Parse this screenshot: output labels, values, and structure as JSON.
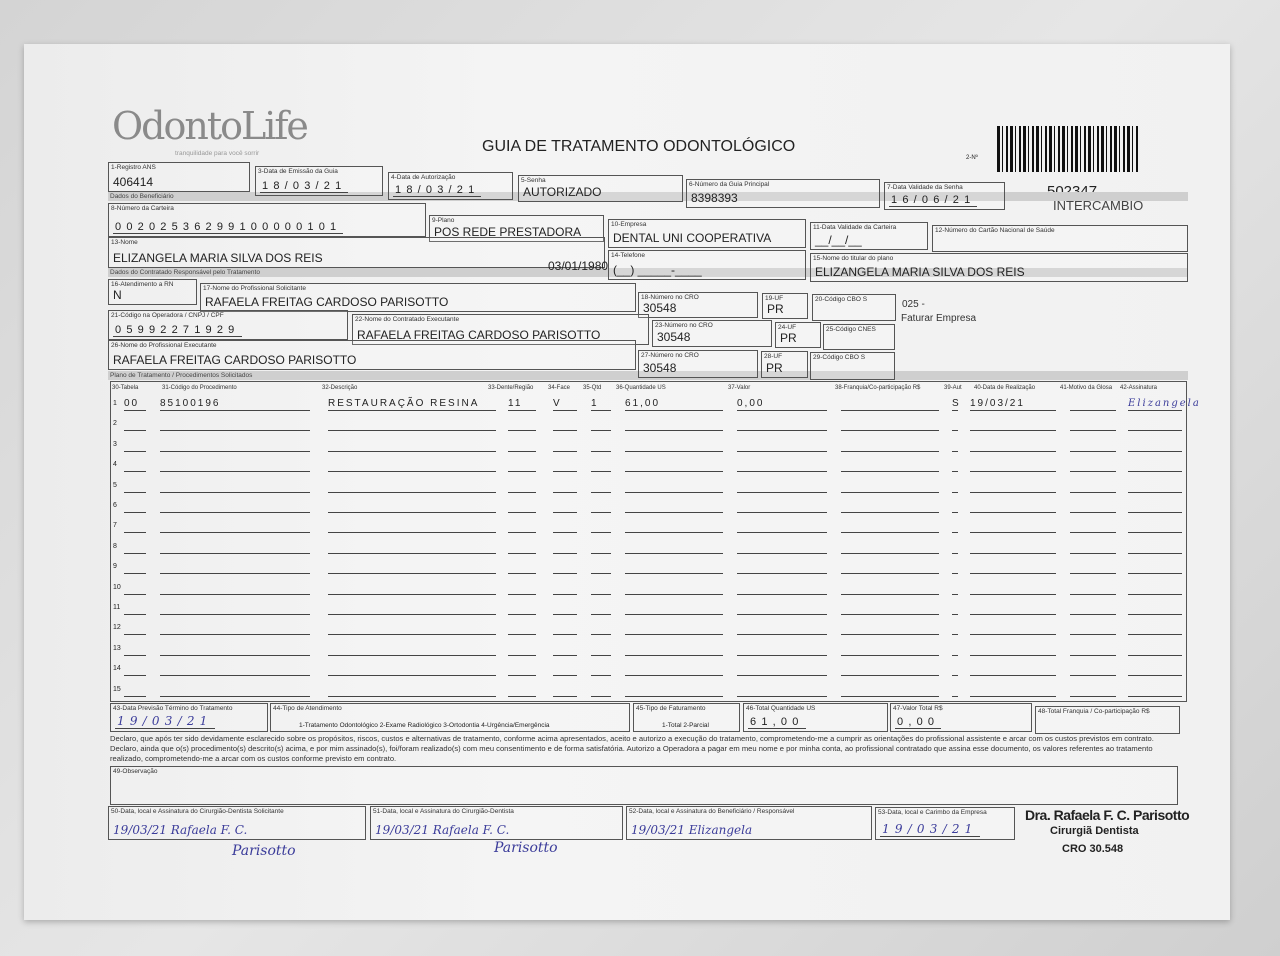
{
  "header": {
    "logo": "OdontoLife",
    "tagline": "tranquilidade para você sorrir",
    "title": "GUIA DE TRATAMENTO ODONTOLÓGICO",
    "guide_no_label": "2-Nº",
    "guide_number": "502347",
    "exchange": "INTERCÂMBIO"
  },
  "sections": {
    "beneficiary": "Dados do Beneficiário",
    "contractor": "Dados do Contratado Responsável pelo Tratamento",
    "plan": "Plano de Tratamento / Procedimentos Solicitados"
  },
  "fields": {
    "f1": {
      "label": "1-Registro ANS",
      "value": "406414"
    },
    "f3": {
      "label": "3-Data de Emissão da Guia",
      "value": "18/03/21"
    },
    "f4": {
      "label": "4-Data de Autorização",
      "value": "18/03/21"
    },
    "f5": {
      "label": "5-Senha",
      "value": "AUTORIZADO"
    },
    "f6": {
      "label": "6-Número da Guia Principal",
      "value": "8398393"
    },
    "f7": {
      "label": "7-Data Validade da Senha",
      "value": "16/06/21"
    },
    "f8": {
      "label": "8-Número da Carteira",
      "value": "00202536299100000101"
    },
    "f9": {
      "label": "9-Plano",
      "value": "POS REDE PRESTADORA"
    },
    "f10": {
      "label": "10-Empresa",
      "value": "DENTAL UNI  COOPERATIVA"
    },
    "f11": {
      "label": "11-Data Validade da Carteira",
      "value": "__/__/__"
    },
    "f12": {
      "label": "12-Número do Cartão Nacional de Saúde",
      "value": ""
    },
    "f13": {
      "label": "13-Nome",
      "value": "ELIZANGELA MARIA SILVA DOS REIS"
    },
    "birth_date": "03/01/1980",
    "f14": {
      "label": "14-Telefone",
      "value": "(__) _____-____"
    },
    "f15": {
      "label": "15-Nome do titular do plano",
      "value": "ELIZANGELA MARIA SILVA DOS REIS"
    },
    "f16": {
      "label": "16-Atendimento a RN",
      "value": "N"
    },
    "f17": {
      "label": "17-Nome do Profissional Solicitante",
      "value": "RAFAELA FREITAG CARDOSO PARISOTTO"
    },
    "f18": {
      "label": "18-Número no CRO",
      "value": "30548"
    },
    "f19": {
      "label": "19-UF",
      "value": "PR"
    },
    "f20": {
      "label": "20-Código CBO S",
      "value": ""
    },
    "f21": {
      "label": "21-Código na Operadora / CNPJ / CPF",
      "value": "05992271929"
    },
    "f22": {
      "label": "22-Nome do Contratado Executante",
      "value": "RAFAELA FREITAG CARDOSO PARISOTTO"
    },
    "f23": {
      "label": "23-Número no CRO",
      "value": "30548"
    },
    "f24": {
      "label": "24-UF",
      "value": "PR"
    },
    "f25": {
      "label": "25-Código CNES",
      "value": ""
    },
    "f26": {
      "label": "26-Nome do Profissional Executante",
      "value": "RAFAELA FREITAG CARDOSO PARISOTTO"
    },
    "f27": {
      "label": "27-Número no CRO",
      "value": "30548"
    },
    "f28": {
      "label": "28-UF",
      "value": "PR"
    },
    "f29": {
      "label": "29-Código CBO S",
      "value": ""
    },
    "f43": {
      "label": "43-Data Previsão Término do Tratamento",
      "value": "19/03/21"
    },
    "f44": {
      "label": "44-Tipo de Atendimento",
      "value": "1-Tratamento Odontológico  2-Exame Radiológico  3-Ortodontia  4-Urgência/Emergência"
    },
    "f45": {
      "label": "45-Tipo de Faturamento",
      "value": "1-Total  2-Parcial"
    },
    "f46": {
      "label": "46-Total Quantidade US",
      "value": "61,00"
    },
    "f47": {
      "label": "47-Valor Total R$",
      "value": "0,00"
    },
    "f48": {
      "label": "48-Total Franquia / Co-participação R$",
      "value": ""
    },
    "f49": {
      "label": "49-Observação",
      "value": ""
    },
    "f50": {
      "label": "50-Data, local e Assinatura do Cirurgião-Dentista Solicitante",
      "value": "19/03/21  Rafaela F. C."
    },
    "f51": {
      "label": "51-Data, local e Assinatura do Cirurgião-Dentista",
      "value": "19/03/21  Rafaela F. C."
    },
    "f52": {
      "label": "52-Data, local e Assinatura do Beneficiário / Responsável",
      "value": "19/03/21  Elizangela"
    },
    "f53": {
      "label": "53-Data, local e Carimbo da Empresa",
      "value": "19/03/21"
    }
  },
  "billing_note": {
    "code": "025 -",
    "text": "Faturar Empresa"
  },
  "table": {
    "headers": [
      "30-Tabela",
      "31-Código do Procedimento",
      "32-Descrição",
      "33-Dente/Região",
      "34-Face",
      "35-Qtd",
      "36-Quantidade US",
      "37-Valor",
      "38-Franquia/Co-participação R$",
      "39-Aut",
      "40-Data de Realização",
      "41-Motivo da Glosa",
      "42-Assinatura"
    ],
    "rows": [
      {
        "n": "1",
        "tabela": "00",
        "codigo": "85100196",
        "descricao": "RESTAURAÇÃO RESINA",
        "dente": "11",
        "face": "V",
        "qtd": "1",
        "us": "61,00",
        "valor": "0,00",
        "franquia": "",
        "aut": "S",
        "data": "19/03/21",
        "glosa": "",
        "assinatura": "Elizangela"
      },
      {
        "n": "2"
      },
      {
        "n": "3"
      },
      {
        "n": "4"
      },
      {
        "n": "5"
      },
      {
        "n": "6"
      },
      {
        "n": "7"
      },
      {
        "n": "8"
      },
      {
        "n": "9"
      },
      {
        "n": "10"
      },
      {
        "n": "11"
      },
      {
        "n": "12"
      },
      {
        "n": "13"
      },
      {
        "n": "14"
      },
      {
        "n": "15"
      }
    ]
  },
  "declaration": "Declaro, que após ter sido devidamente esclarecido sobre os propósitos, riscos, custos e alternativas de tratamento, conforme acima apresentados, aceito e autorizo a execução do tratamento, comprometendo-me a cumprir as orientações do profissional assistente e arcar com os custos previstos em contrato. Declaro, ainda que o(s) procedimento(s) descrito(s) acima, e por mim assinado(s), foi/foram realizado(s) com meu consentimento e de forma satisfatória. Autorizo a Operadora a pagar em meu nome e por minha conta, ao profissional contratado que assina esse documento, os valores referentes ao tratamento realizado, comprometendo-me a arcar com os custos conforme previsto em contrato.",
  "signatures": {
    "solicitante_surname": "Parisotto",
    "executante_surname": "Parisotto"
  },
  "stamp": {
    "name": "Dra. Rafaela F. C. Parisotto",
    "title": "Cirurgiã Dentista",
    "cro": "CRO 30.548"
  }
}
